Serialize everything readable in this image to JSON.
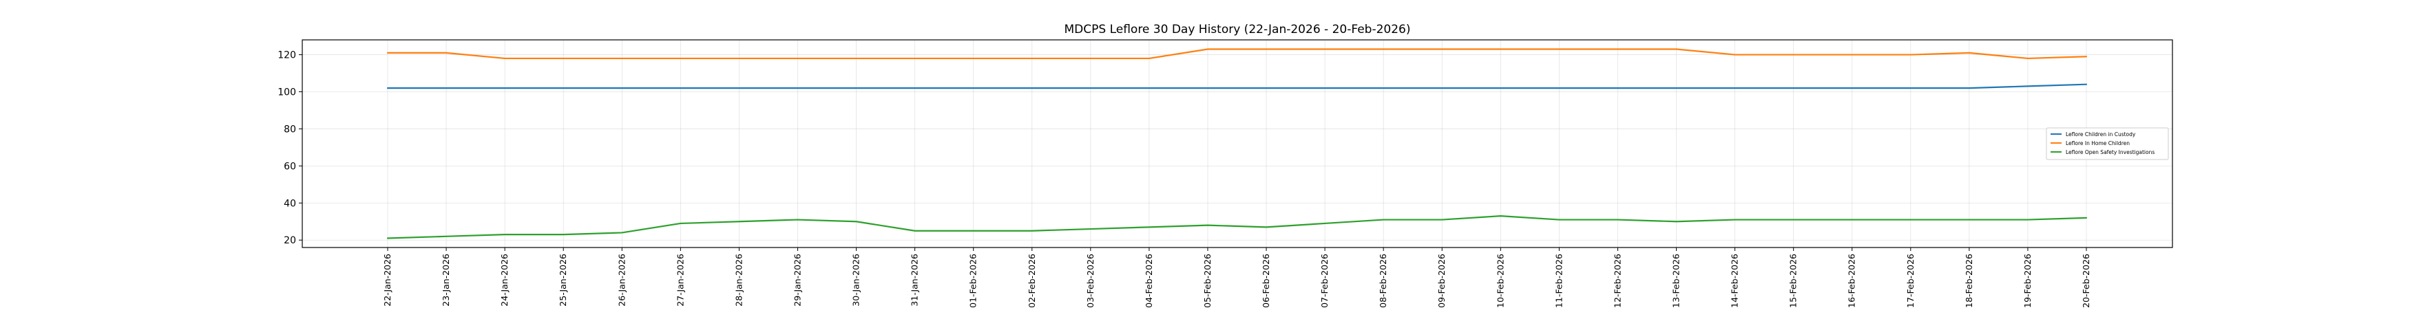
{
  "chart_data": {
    "type": "line",
    "title": "MDCPS Leflore 30 Day History (22-Jan-2026 - 20-Feb-2026)",
    "xlabel": "",
    "ylabel": "",
    "grid": true,
    "legend_position": "center-right",
    "ylim": [
      16,
      128
    ],
    "yticks": [
      20,
      40,
      60,
      80,
      100,
      120
    ],
    "categories": [
      "22-Jan-2026",
      "23-Jan-2026",
      "24-Jan-2026",
      "25-Jan-2026",
      "26-Jan-2026",
      "27-Jan-2026",
      "28-Jan-2026",
      "29-Jan-2026",
      "30-Jan-2026",
      "31-Jan-2026",
      "01-Feb-2026",
      "02-Feb-2026",
      "03-Feb-2026",
      "04-Feb-2026",
      "05-Feb-2026",
      "06-Feb-2026",
      "07-Feb-2026",
      "08-Feb-2026",
      "09-Feb-2026",
      "10-Feb-2026",
      "11-Feb-2026",
      "12-Feb-2026",
      "13-Feb-2026",
      "14-Feb-2026",
      "15-Feb-2026",
      "16-Feb-2026",
      "17-Feb-2026",
      "18-Feb-2026",
      "19-Feb-2026",
      "20-Feb-2026"
    ],
    "series": [
      {
        "name": "Leflore Children in Custody",
        "color": "#1f77b4",
        "values": [
          102,
          102,
          102,
          102,
          102,
          102,
          102,
          102,
          102,
          102,
          102,
          102,
          102,
          102,
          102,
          102,
          102,
          102,
          102,
          102,
          102,
          102,
          102,
          102,
          102,
          102,
          102,
          102,
          103,
          104
        ]
      },
      {
        "name": "Leflore In Home Children",
        "color": "#ff7f0e",
        "values": [
          121,
          121,
          118,
          118,
          118,
          118,
          118,
          118,
          118,
          118,
          118,
          118,
          118,
          118,
          123,
          123,
          123,
          123,
          123,
          123,
          123,
          123,
          123,
          120,
          120,
          120,
          120,
          121,
          118,
          119
        ]
      },
      {
        "name": "Leflore Open Safety Investigations",
        "color": "#2ca02c",
        "values": [
          21,
          22,
          23,
          23,
          24,
          29,
          30,
          31,
          30,
          25,
          25,
          25,
          26,
          27,
          28,
          27,
          29,
          31,
          31,
          33,
          31,
          31,
          30,
          31,
          31,
          31,
          31,
          31,
          31,
          32
        ]
      }
    ]
  }
}
